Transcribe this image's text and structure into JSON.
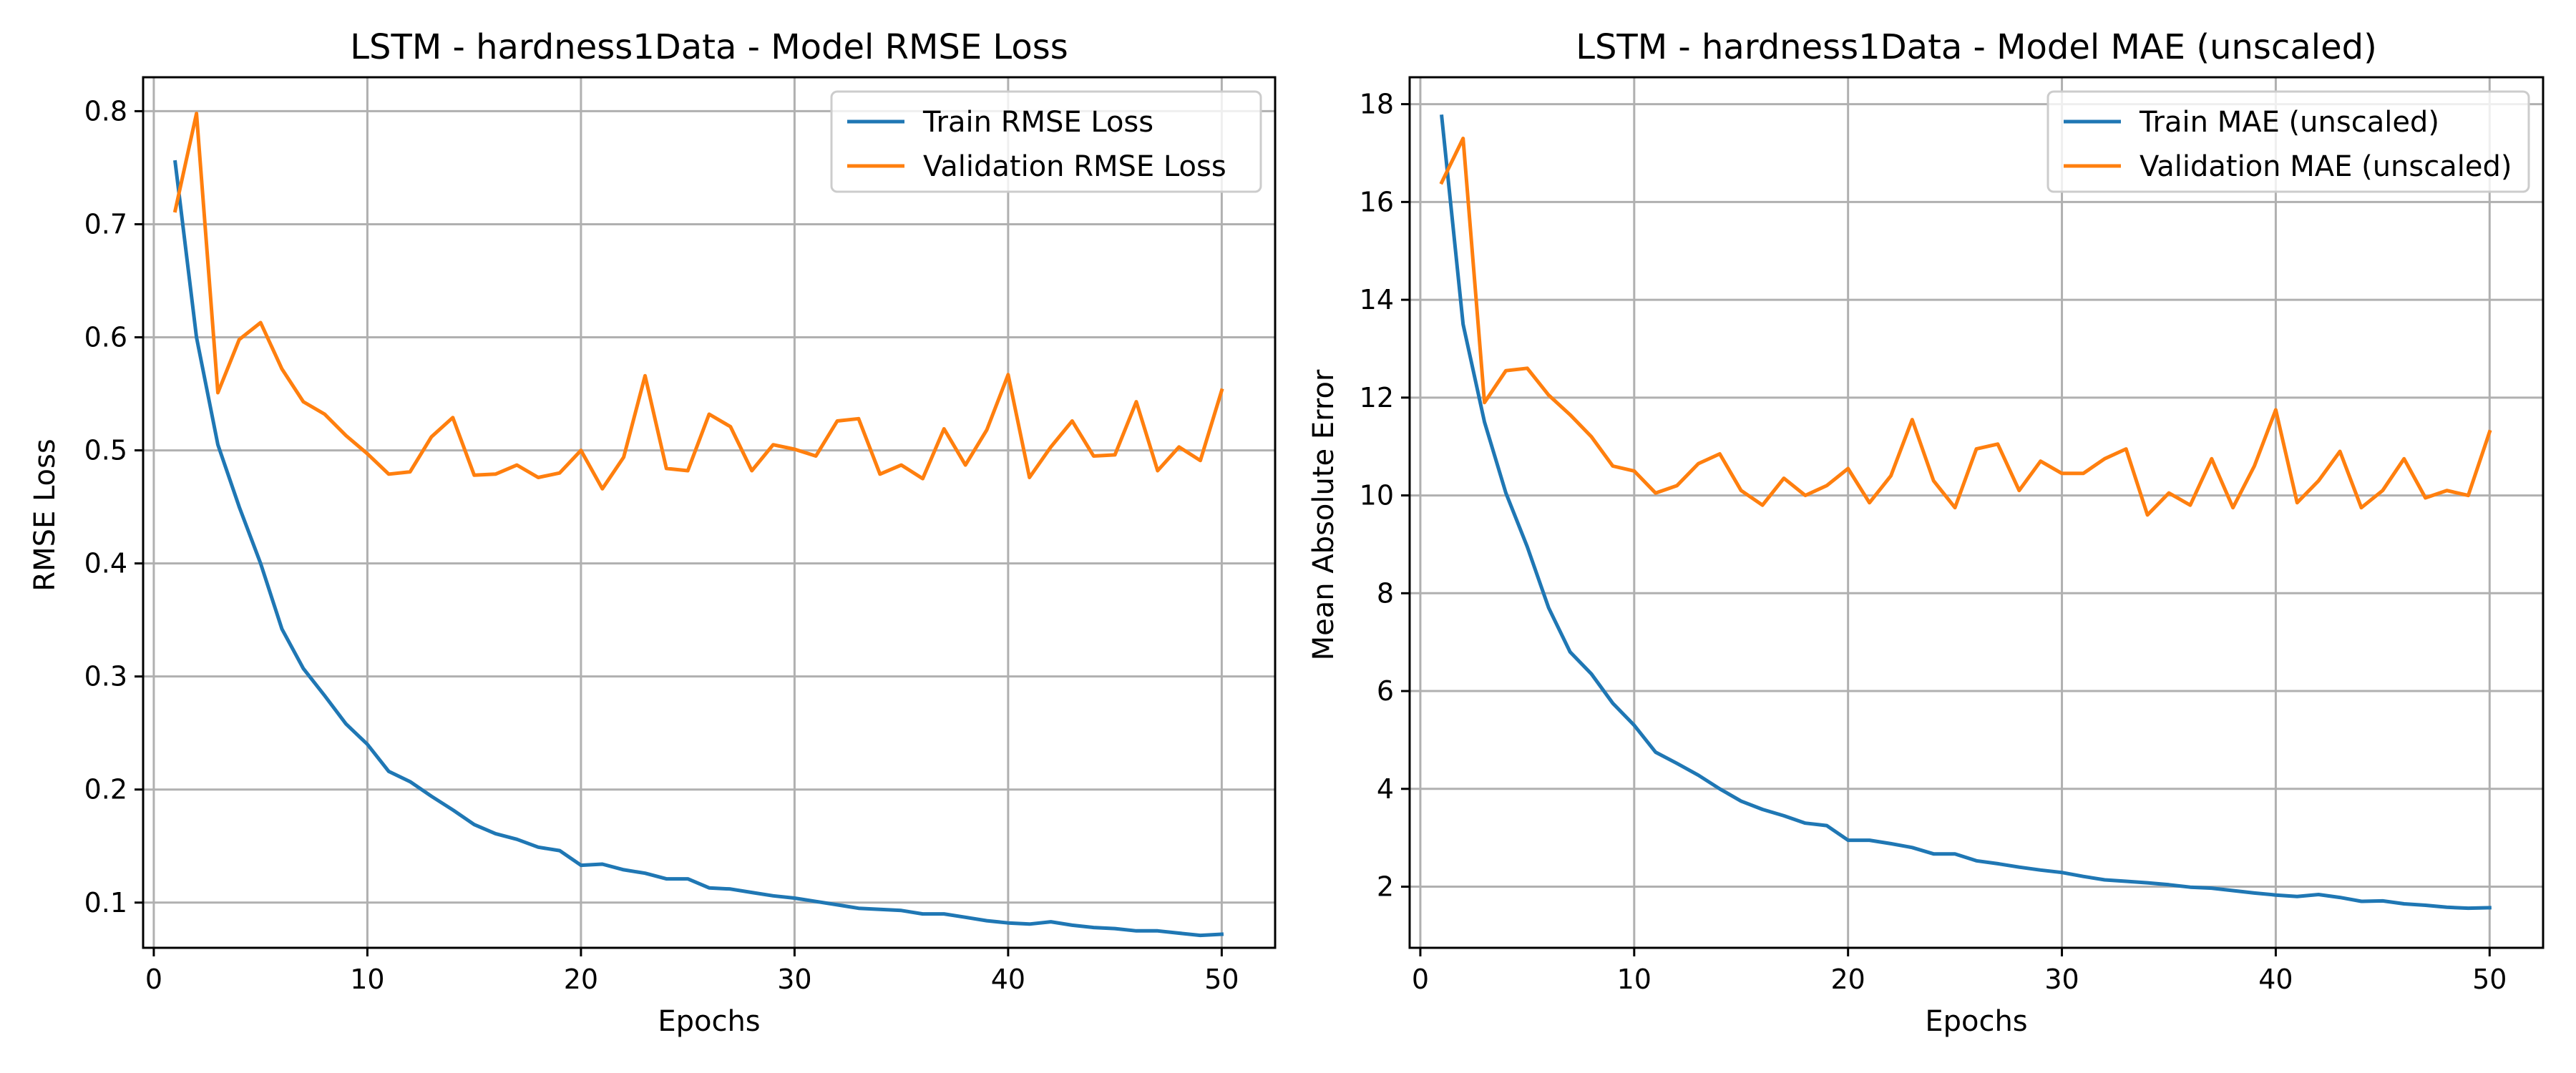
{
  "colors": {
    "train": "#1f77b4",
    "validation": "#ff7f0e",
    "grid": "#b0b0b0",
    "axes": "#000000"
  },
  "chart_data": [
    {
      "type": "line",
      "title": "LSTM - hardness1Data - Model RMSE Loss",
      "xlabel": "Epochs",
      "ylabel": "RMSE Loss",
      "xlim": [
        -0.5,
        52.5
      ],
      "ylim": [
        0.06,
        0.83
      ],
      "xticks": [
        0,
        10,
        20,
        30,
        40,
        50
      ],
      "yticks": [
        0.1,
        0.2,
        0.3,
        0.4,
        0.5,
        0.6,
        0.7,
        0.8
      ],
      "xtick_labels": [
        "0",
        "10",
        "20",
        "30",
        "40",
        "50"
      ],
      "ytick_labels": [
        "0.1",
        "0.2",
        "0.3",
        "0.4",
        "0.5",
        "0.6",
        "0.7",
        "0.8"
      ],
      "grid": true,
      "legend_position": "top-right",
      "x": [
        1,
        2,
        3,
        4,
        5,
        6,
        7,
        8,
        9,
        10,
        11,
        12,
        13,
        14,
        15,
        16,
        17,
        18,
        19,
        20,
        21,
        22,
        23,
        24,
        25,
        26,
        27,
        28,
        29,
        30,
        31,
        32,
        33,
        34,
        35,
        36,
        37,
        38,
        39,
        40,
        41,
        42,
        43,
        44,
        45,
        46,
        47,
        48,
        49,
        50
      ],
      "series": [
        {
          "name": "Train RMSE Loss",
          "color": "#1f77b4",
          "values": [
            0.755,
            0.6,
            0.505,
            0.45,
            0.4,
            0.342,
            0.307,
            0.283,
            0.258,
            0.24,
            0.216,
            0.207,
            0.194,
            0.182,
            0.169,
            0.161,
            0.156,
            0.149,
            0.146,
            0.133,
            0.134,
            0.129,
            0.126,
            0.121,
            0.121,
            0.113,
            0.112,
            0.109,
            0.106,
            0.104,
            0.101,
            0.098,
            0.095,
            0.094,
            0.093,
            0.09,
            0.09,
            0.087,
            0.084,
            0.082,
            0.081,
            0.083,
            0.08,
            0.078,
            0.077,
            0.075,
            0.075,
            0.073,
            0.071,
            0.072
          ]
        },
        {
          "name": "Validation RMSE Loss",
          "color": "#ff7f0e",
          "values": [
            0.712,
            0.798,
            0.551,
            0.598,
            0.613,
            0.572,
            0.543,
            0.532,
            0.513,
            0.497,
            0.479,
            0.481,
            0.512,
            0.529,
            0.478,
            0.479,
            0.487,
            0.476,
            0.48,
            0.5,
            0.466,
            0.494,
            0.566,
            0.484,
            0.482,
            0.532,
            0.521,
            0.482,
            0.505,
            0.501,
            0.495,
            0.526,
            0.528,
            0.479,
            0.487,
            0.475,
            0.519,
            0.487,
            0.518,
            0.567,
            0.476,
            0.503,
            0.526,
            0.495,
            0.496,
            0.543,
            0.482,
            0.503,
            0.491,
            0.553
          ]
        }
      ]
    },
    {
      "type": "line",
      "title": "LSTM - hardness1Data - Model MAE (unscaled)",
      "xlabel": "Epochs",
      "ylabel": "Mean Absolute Error",
      "xlim": [
        -0.5,
        52.5
      ],
      "ylim": [
        0.75,
        18.55
      ],
      "xticks": [
        0,
        10,
        20,
        30,
        40,
        50
      ],
      "yticks": [
        2,
        4,
        6,
        8,
        10,
        12,
        14,
        16,
        18
      ],
      "xtick_labels": [
        "0",
        "10",
        "20",
        "30",
        "40",
        "50"
      ],
      "ytick_labels": [
        "2",
        "4",
        "6",
        "8",
        "10",
        "12",
        "14",
        "16",
        "18"
      ],
      "grid": true,
      "legend_position": "top-right",
      "x": [
        1,
        2,
        3,
        4,
        5,
        6,
        7,
        8,
        9,
        10,
        11,
        12,
        13,
        14,
        15,
        16,
        17,
        18,
        19,
        20,
        21,
        22,
        23,
        24,
        25,
        26,
        27,
        28,
        29,
        30,
        31,
        32,
        33,
        34,
        35,
        36,
        37,
        38,
        39,
        40,
        41,
        42,
        43,
        44,
        45,
        46,
        47,
        48,
        49,
        50
      ],
      "series": [
        {
          "name": "Train MAE (unscaled)",
          "color": "#1f77b4",
          "values": [
            17.75,
            13.5,
            11.5,
            10.05,
            8.95,
            7.7,
            6.8,
            6.35,
            5.75,
            5.3,
            4.75,
            4.52,
            4.28,
            4.0,
            3.75,
            3.58,
            3.45,
            3.3,
            3.25,
            2.95,
            2.95,
            2.88,
            2.8,
            2.67,
            2.67,
            2.53,
            2.47,
            2.4,
            2.34,
            2.29,
            2.21,
            2.14,
            2.11,
            2.08,
            2.04,
            1.99,
            1.97,
            1.92,
            1.87,
            1.83,
            1.8,
            1.84,
            1.78,
            1.7,
            1.71,
            1.65,
            1.62,
            1.58,
            1.56,
            1.57
          ]
        },
        {
          "name": "Validation MAE (unscaled)",
          "color": "#ff7f0e",
          "values": [
            16.4,
            17.3,
            11.9,
            12.55,
            12.6,
            12.05,
            11.65,
            11.2,
            10.6,
            10.5,
            10.05,
            10.2,
            10.65,
            10.85,
            10.1,
            9.8,
            10.35,
            10.0,
            10.2,
            10.55,
            9.85,
            10.4,
            11.55,
            10.3,
            9.75,
            10.95,
            11.05,
            10.1,
            10.7,
            10.45,
            10.45,
            10.75,
            10.95,
            9.6,
            10.05,
            9.8,
            10.75,
            9.75,
            10.6,
            11.75,
            9.85,
            10.3,
            10.9,
            9.75,
            10.1,
            10.75,
            9.95,
            10.1,
            10.0,
            11.3
          ]
        }
      ]
    }
  ]
}
